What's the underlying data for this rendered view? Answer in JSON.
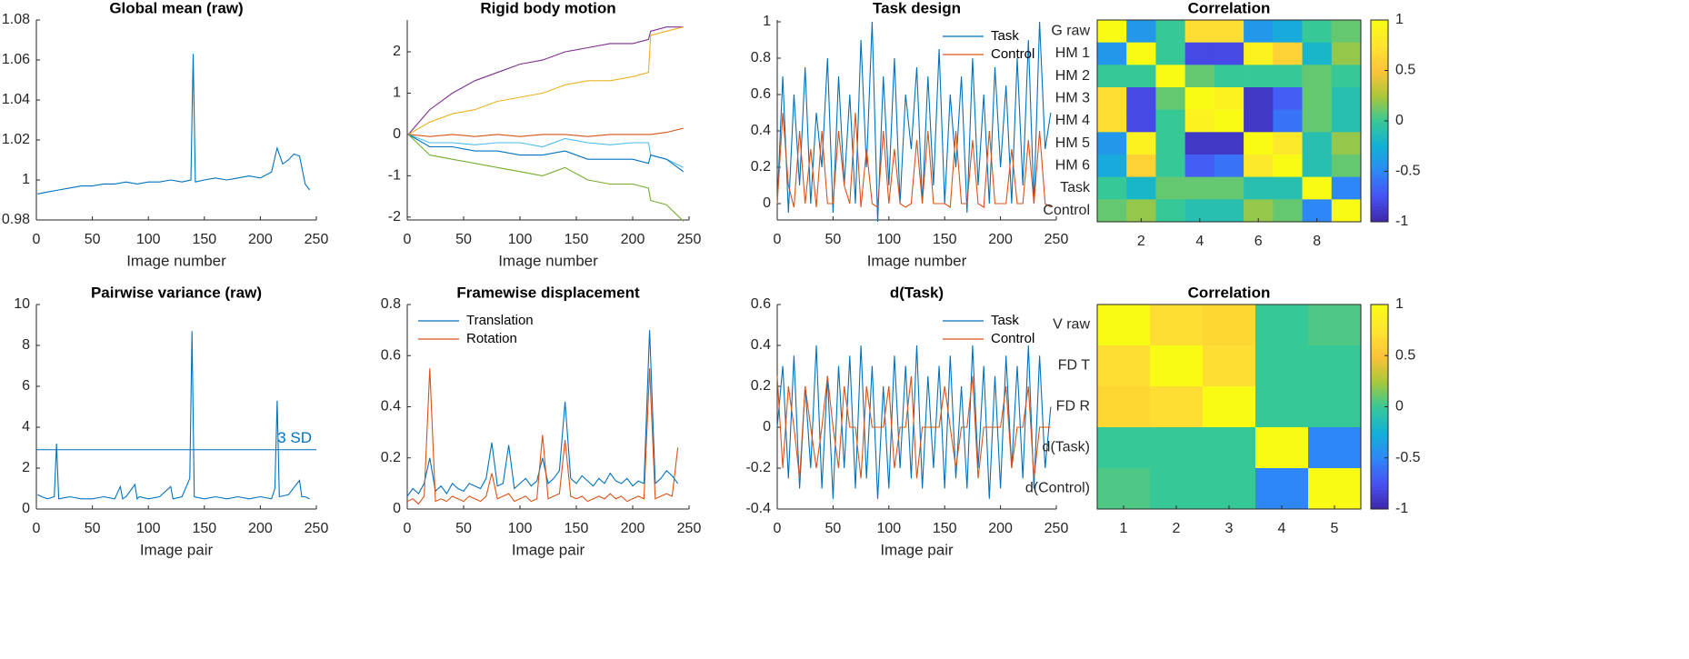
{
  "chart_data": [
    {
      "type": "line",
      "title": "Global mean (raw)",
      "xlabel": "Image number",
      "color": "#0072BD",
      "x": [
        1,
        10,
        20,
        30,
        40,
        50,
        60,
        70,
        80,
        90,
        100,
        110,
        120,
        130,
        138,
        140,
        142,
        150,
        160,
        170,
        180,
        190,
        200,
        210,
        215,
        220,
        225,
        230,
        235,
        240,
        244
      ],
      "values": [
        0.993,
        0.994,
        0.995,
        0.996,
        0.997,
        0.997,
        0.998,
        0.998,
        0.999,
        0.998,
        0.999,
        0.999,
        1.0,
        0.999,
        1.0,
        1.063,
        0.999,
        1.0,
        1.001,
        1.0,
        1.001,
        1.002,
        1.001,
        1.004,
        1.016,
        1.008,
        1.01,
        1.013,
        1.012,
        0.998,
        0.995
      ],
      "xlim": [
        0,
        250
      ],
      "xticks": [
        0,
        50,
        100,
        150,
        200,
        250
      ],
      "ylim": [
        0.98,
        1.08
      ],
      "yticks": [
        0.98,
        1,
        1.02,
        1.04,
        1.06,
        1.08
      ]
    },
    {
      "type": "line",
      "title": "Rigid body motion",
      "xlabel": "Image number",
      "x": [
        1,
        20,
        40,
        60,
        80,
        100,
        120,
        140,
        160,
        180,
        200,
        214,
        216,
        230,
        245
      ],
      "series": [
        {
          "color": "#7E2F8E",
          "values": [
            0,
            0.6,
            1.0,
            1.3,
            1.5,
            1.7,
            1.8,
            2.0,
            2.1,
            2.2,
            2.2,
            2.3,
            2.5,
            2.6,
            2.6
          ]
        },
        {
          "color": "#EDB120",
          "values": [
            0,
            0.3,
            0.5,
            0.6,
            0.8,
            0.9,
            1.0,
            1.2,
            1.3,
            1.3,
            1.4,
            1.5,
            2.4,
            2.5,
            2.6
          ]
        },
        {
          "color": "#D95319",
          "values": [
            0,
            -0.05,
            0,
            -0.05,
            0,
            -0.05,
            0,
            0,
            -0.05,
            0,
            0,
            0,
            0,
            0.05,
            0.15
          ]
        },
        {
          "color": "#4DBEEE",
          "values": [
            0,
            -0.2,
            -0.2,
            -0.25,
            -0.2,
            -0.2,
            -0.3,
            -0.1,
            -0.2,
            -0.25,
            -0.2,
            -0.2,
            -0.5,
            -0.6,
            -0.8
          ]
        },
        {
          "color": "#0072BD",
          "values": [
            0,
            -0.3,
            -0.3,
            -0.4,
            -0.4,
            -0.5,
            -0.5,
            -0.4,
            -0.6,
            -0.6,
            -0.6,
            -0.7,
            -0.5,
            -0.6,
            -0.9
          ]
        },
        {
          "color": "#77AC30",
          "values": [
            0,
            -0.5,
            -0.6,
            -0.7,
            -0.8,
            -0.9,
            -1.0,
            -0.8,
            -1.1,
            -1.2,
            -1.2,
            -1.3,
            -1.6,
            -1.7,
            -2.1
          ]
        }
      ],
      "xlim": [
        0,
        250
      ],
      "xticks": [
        0,
        50,
        100,
        150,
        200,
        250
      ],
      "ylim": [
        -2.07,
        2.77
      ],
      "yticks": [
        -2,
        -1,
        0,
        1,
        2
      ]
    },
    {
      "type": "line",
      "title": "Task design",
      "xlabel": "Image number",
      "legend": "northeast",
      "x": [
        0,
        5,
        10,
        15,
        20,
        25,
        30,
        35,
        40,
        45,
        50,
        55,
        60,
        65,
        70,
        75,
        80,
        85,
        90,
        95,
        100,
        105,
        110,
        115,
        120,
        125,
        130,
        135,
        140,
        145,
        150,
        155,
        160,
        165,
        170,
        175,
        180,
        185,
        190,
        195,
        200,
        205,
        210,
        215,
        220,
        225,
        230,
        235,
        240,
        245
      ],
      "series": [
        {
          "name": "Task",
          "color": "#0072BD",
          "values": [
            0,
            0.7,
            -0.05,
            0.6,
            0.1,
            0.75,
            0,
            0.5,
            0.2,
            0.8,
            -0.05,
            0.7,
            0.1,
            0.6,
            0,
            0.9,
            0.2,
            1.0,
            -0.1,
            0.7,
            0.1,
            0.8,
            0,
            0.6,
            0.3,
            0.75,
            0,
            0.7,
            0.1,
            0.85,
            0,
            0.6,
            0.2,
            0.7,
            -0.05,
            0.8,
            0.1,
            0.6,
            0,
            0.75,
            0.2,
            0.65,
            0,
            0.8,
            0.1,
            0.9,
            0,
            1.0,
            0.3,
            0.5
          ]
        },
        {
          "name": "Control",
          "color": "#D95319",
          "values": [
            0,
            0.5,
            0.1,
            -0.02,
            0.4,
            0,
            0.3,
            -0.02,
            0.4,
            0,
            0,
            0.4,
            0.1,
            0,
            0.5,
            -0.02,
            0.3,
            0,
            -0.02,
            0.4,
            0,
            0.3,
            0,
            -0.02,
            0,
            0.35,
            0,
            0.4,
            0,
            0,
            0,
            -0.02,
            0.4,
            0,
            0,
            0.35,
            0,
            -0.02,
            0.4,
            0,
            0,
            0,
            0.3,
            0,
            0,
            0.35,
            0,
            0.4,
            0,
            -0.02
          ]
        }
      ],
      "xlim": [
        0,
        250
      ],
      "xticks": [
        0,
        50,
        100,
        150,
        200,
        250
      ],
      "ylim": [
        -0.09,
        1.01
      ],
      "yticks": [
        0,
        0.2,
        0.4,
        0.6,
        0.8,
        1
      ]
    },
    {
      "type": "heatmap",
      "title": "Correlation",
      "y_categories": [
        "G raw",
        "HM 1",
        "HM 2",
        "HM 3",
        "HM 4",
        "HM 5",
        "HM 6",
        "Task",
        "Control"
      ],
      "values": [
        [
          1,
          -0.4,
          0,
          0.7,
          0.7,
          -0.4,
          -0.3,
          0,
          0.1
        ],
        [
          -0.4,
          1,
          0,
          -0.8,
          -0.8,
          0.9,
          0.6,
          -0.2,
          0.2
        ],
        [
          0,
          0,
          1,
          0.1,
          0,
          0,
          0,
          0.1,
          0
        ],
        [
          0.7,
          -0.8,
          0.1,
          1,
          0.9,
          -0.9,
          -0.7,
          0.1,
          -0.1
        ],
        [
          0.7,
          -0.8,
          0,
          0.9,
          1,
          -0.9,
          -0.6,
          0.1,
          -0.1
        ],
        [
          -0.4,
          0.9,
          0,
          -0.9,
          -0.9,
          1,
          0.8,
          -0.1,
          0.2
        ],
        [
          -0.3,
          0.6,
          0,
          -0.7,
          -0.6,
          0.8,
          1,
          -0.1,
          0.1
        ],
        [
          0,
          -0.2,
          0.1,
          0.1,
          0.1,
          -0.1,
          -0.1,
          1,
          -0.5
        ],
        [
          0.1,
          0.2,
          0,
          -0.1,
          -0.1,
          0.2,
          0.1,
          -0.5,
          1
        ]
      ],
      "xlim": [
        0.5,
        9.5
      ],
      "xticks": [
        2,
        4,
        6,
        8
      ],
      "clim": [
        -1,
        1
      ],
      "cticks": [
        -1,
        -0.5,
        0,
        0.5,
        1
      ]
    },
    {
      "type": "line",
      "title": "Pairwise variance (raw)",
      "xlabel": "Image pair",
      "color": "#0072BD",
      "x": [
        1,
        5,
        10,
        16,
        18,
        20,
        30,
        40,
        50,
        60,
        70,
        75,
        77,
        80,
        88,
        90,
        92,
        100,
        110,
        120,
        122,
        130,
        137,
        139,
        141,
        150,
        160,
        170,
        180,
        190,
        200,
        210,
        213,
        215,
        217,
        225,
        235,
        237,
        240,
        244
      ],
      "values": [
        0.7,
        0.6,
        0.5,
        0.6,
        3.2,
        0.5,
        0.6,
        0.5,
        0.5,
        0.6,
        0.5,
        1.1,
        0.5,
        0.6,
        1.2,
        0.5,
        0.6,
        0.5,
        0.6,
        1.1,
        0.5,
        0.6,
        1.5,
        8.7,
        0.6,
        0.5,
        0.6,
        0.5,
        0.6,
        0.5,
        0.6,
        0.5,
        1.0,
        5.3,
        0.6,
        0.7,
        1.4,
        0.6,
        0.6,
        0.5
      ],
      "threshold": {
        "value": 2.9,
        "label": "3 SD"
      },
      "xlim": [
        0,
        250
      ],
      "xticks": [
        0,
        50,
        100,
        150,
        200,
        250
      ],
      "ylim": [
        0,
        10
      ],
      "yticks": [
        0,
        2,
        4,
        6,
        8,
        10
      ]
    },
    {
      "type": "line",
      "title": "Framewise displacement",
      "xlabel": "Image pair",
      "legend": "northwest",
      "x": [
        0,
        5,
        10,
        15,
        20,
        25,
        30,
        35,
        40,
        45,
        50,
        55,
        60,
        65,
        70,
        75,
        80,
        85,
        90,
        95,
        100,
        105,
        110,
        115,
        120,
        125,
        130,
        135,
        140,
        145,
        150,
        155,
        160,
        165,
        170,
        175,
        180,
        185,
        190,
        195,
        200,
        205,
        210,
        215,
        220,
        225,
        230,
        235,
        240
      ],
      "series": [
        {
          "name": "Translation",
          "color": "#0072BD",
          "values": [
            0.05,
            0.08,
            0.06,
            0.1,
            0.2,
            0.07,
            0.09,
            0.06,
            0.1,
            0.08,
            0.07,
            0.1,
            0.09,
            0.08,
            0.12,
            0.26,
            0.09,
            0.1,
            0.25,
            0.08,
            0.1,
            0.12,
            0.09,
            0.11,
            0.2,
            0.1,
            0.12,
            0.15,
            0.42,
            0.12,
            0.1,
            0.13,
            0.11,
            0.09,
            0.12,
            0.1,
            0.14,
            0.11,
            0.1,
            0.12,
            0.09,
            0.11,
            0.1,
            0.7,
            0.1,
            0.12,
            0.15,
            0.13,
            0.1
          ]
        },
        {
          "name": "Rotation",
          "color": "#D95319",
          "values": [
            0.03,
            0.04,
            0.02,
            0.05,
            0.55,
            0.03,
            0.04,
            0.03,
            0.05,
            0.04,
            0.03,
            0.05,
            0.04,
            0.03,
            0.05,
            0.14,
            0.04,
            0.05,
            0.06,
            0.03,
            0.04,
            0.05,
            0.03,
            0.04,
            0.29,
            0.04,
            0.05,
            0.06,
            0.27,
            0.05,
            0.04,
            0.05,
            0.03,
            0.04,
            0.05,
            0.04,
            0.06,
            0.04,
            0.05,
            0.03,
            0.04,
            0.05,
            0.04,
            0.55,
            0.04,
            0.05,
            0.06,
            0.05,
            0.24
          ]
        }
      ],
      "xlim": [
        0,
        250
      ],
      "xticks": [
        0,
        50,
        100,
        150,
        200,
        250
      ],
      "ylim": [
        0,
        0.8
      ],
      "yticks": [
        0,
        0.2,
        0.4,
        0.6,
        0.8
      ]
    },
    {
      "type": "line",
      "title": "d(Task)",
      "xlabel": "Image pair",
      "legend": "northeast",
      "x": [
        0,
        5,
        10,
        15,
        20,
        25,
        30,
        35,
        40,
        45,
        50,
        55,
        60,
        65,
        70,
        75,
        80,
        85,
        90,
        95,
        100,
        105,
        110,
        115,
        120,
        125,
        130,
        135,
        140,
        145,
        150,
        155,
        160,
        165,
        170,
        175,
        180,
        185,
        190,
        195,
        200,
        205,
        210,
        215,
        220,
        225,
        230,
        235,
        240,
        245
      ],
      "series": [
        {
          "name": "Task",
          "color": "#0072BD",
          "values": [
            0,
            0.3,
            -0.25,
            0.35,
            -0.3,
            0.2,
            -0.2,
            0.4,
            -0.3,
            0.25,
            -0.35,
            0.3,
            -0.2,
            0.35,
            -0.3,
            0.4,
            -0.25,
            0.3,
            -0.35,
            0.2,
            -0.3,
            0.35,
            -0.2,
            0.3,
            -0.25,
            0.4,
            -0.3,
            0.25,
            -0.2,
            0.3,
            -0.3,
            0.35,
            -0.25,
            0.2,
            -0.3,
            0.4,
            -0.2,
            0.3,
            -0.35,
            0.25,
            -0.3,
            0.35,
            -0.2,
            0.3,
            -0.25,
            0.4,
            -0.3,
            0.35,
            -0.2,
            0.1
          ]
        },
        {
          "name": "Control",
          "color": "#D95319",
          "values": [
            0.25,
            -0.2,
            0.2,
            0,
            -0.25,
            0.2,
            0,
            -0.2,
            0,
            0.25,
            0,
            -0.2,
            0.2,
            0,
            0,
            -0.25,
            0.2,
            0,
            0,
            0,
            0.2,
            -0.2,
            0,
            0,
            0.25,
            -0.25,
            0,
            0,
            0,
            0,
            0.2,
            0,
            -0.2,
            0,
            0,
            0.25,
            -0.25,
            0,
            0,
            0,
            0,
            0.2,
            -0.2,
            0,
            0,
            0.2,
            -0.25,
            0,
            0,
            0
          ]
        }
      ],
      "xlim": [
        0,
        250
      ],
      "xticks": [
        0,
        50,
        100,
        150,
        200,
        250
      ],
      "ylim": [
        -0.4,
        0.6
      ],
      "yticks": [
        -0.4,
        -0.2,
        0,
        0.2,
        0.4,
        0.6
      ]
    },
    {
      "type": "heatmap",
      "title": "Correlation",
      "y_categories": [
        "V raw",
        "FD T",
        "FD R",
        "d(Task)",
        "d(Control)"
      ],
      "values": [
        [
          1,
          0.7,
          0.65,
          0,
          0.05
        ],
        [
          0.7,
          1,
          0.7,
          0,
          0
        ],
        [
          0.65,
          0.7,
          1,
          0,
          0
        ],
        [
          0,
          0,
          0,
          1,
          -0.5
        ],
        [
          0.05,
          0,
          0,
          -0.5,
          1
        ]
      ],
      "xlim": [
        0.5,
        5.5
      ],
      "xticks": [
        1,
        2,
        3,
        4,
        5
      ],
      "clim": [
        -1,
        1
      ],
      "cticks": [
        -1,
        -0.5,
        0,
        0.5,
        1
      ]
    }
  ]
}
